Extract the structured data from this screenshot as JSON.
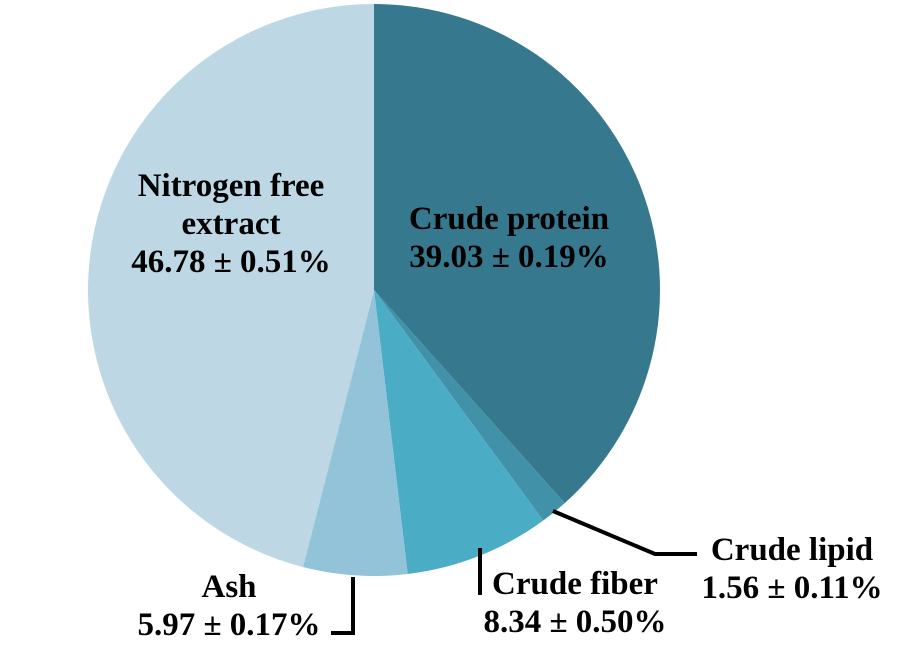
{
  "figure": {
    "background_color": "#ffffff",
    "text_color": "#000000",
    "leader_line_color": "#000000"
  },
  "chart_data": {
    "type": "pie",
    "title": "",
    "unit": "%",
    "start_angle_deg": 0,
    "direction": "clockwise",
    "legend": "none",
    "slices": [
      {
        "label": "Crude protein",
        "value": 39.03,
        "sd": 0.19,
        "color": "#36798F"
      },
      {
        "label": "Crude lipid",
        "value": 1.56,
        "sd": 0.11,
        "color": "#4191A9"
      },
      {
        "label": "Crude fiber",
        "value": 8.34,
        "sd": 0.5,
        "color": "#4BACC6"
      },
      {
        "label": "Ash",
        "value": 5.97,
        "sd": 0.17,
        "color": "#93C3D8"
      },
      {
        "label": "Nitrogen free extract",
        "value": 46.78,
        "sd": 0.51,
        "color": "#BDD8E4"
      }
    ]
  },
  "labels": {
    "crude_protein": {
      "line1": "Crude protein",
      "line2": "39.03 ± 0.19%"
    },
    "nitrogen_free_extract": {
      "line1": "Nitrogen free",
      "line2": "extract",
      "line3": "46.78 ± 0.51%"
    },
    "ash": {
      "line1": "Ash",
      "line2": "5.97 ± 0.17%"
    },
    "crude_fiber": {
      "line1": "Crude fiber",
      "line2": "8.34 ± 0.50%"
    },
    "crude_lipid": {
      "line1": "Crude lipid",
      "line2": "1.56 ± 0.11%"
    }
  }
}
